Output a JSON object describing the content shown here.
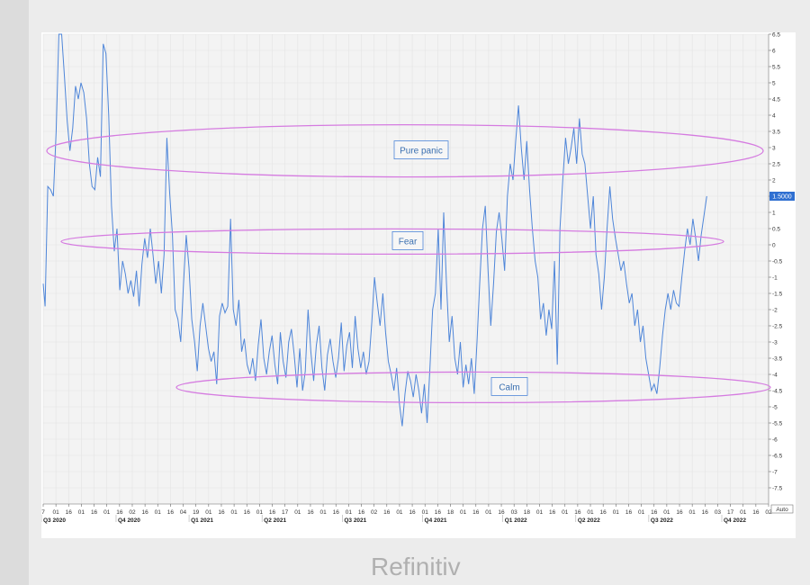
{
  "brand": "Refinitiv",
  "colors": {
    "line": "#4f86d9",
    "ellipse": "#d57be0",
    "label_border": "#4f86d9",
    "last_value_bg": "#2f6fd1",
    "grid": "#e3e3e3"
  },
  "chart_data": {
    "type": "line",
    "title": "",
    "xlabel": "",
    "ylabel": "",
    "ylim": [
      -8,
      6.5
    ],
    "yticks": [
      "6.5",
      "6",
      "5.5",
      "5",
      "4.5",
      "4",
      "3.5",
      "3",
      "2.5",
      "2",
      "1.5",
      "1",
      "0.5",
      "0",
      "-0.5",
      "-1",
      "-1.5",
      "-2",
      "-2.5",
      "-3",
      "-3.5",
      "-4",
      "-4.5",
      "-5",
      "-5.5",
      "-6",
      "-6.5",
      "-7",
      "-7.5"
    ],
    "last_value_label": "1.5000",
    "auto_label": "Auto",
    "grid": true,
    "xtick_days": [
      "7",
      "01",
      "16",
      "01",
      "16",
      "01",
      "16",
      "02",
      "16",
      "01",
      "16",
      "04",
      "19",
      "01",
      "16",
      "01",
      "16",
      "01",
      "16",
      "17",
      "01",
      "16",
      "01",
      "16",
      "01",
      "16",
      "02",
      "16",
      "01",
      "16",
      "01",
      "16",
      "18",
      "01",
      "16",
      "01",
      "16",
      "03",
      "18",
      "01",
      "16",
      "01",
      "16",
      "01",
      "16",
      "01",
      "16",
      "01",
      "16",
      "01",
      "16",
      "01",
      "16",
      "03",
      "17",
      "01",
      "16",
      "02"
    ],
    "quarters": [
      "Q3 2020",
      "Q4 2020",
      "Q1 2021",
      "Q2 2021",
      "Q3 2021",
      "Q4 2021",
      "Q1 2022",
      "Q2 2022",
      "Q3 2022",
      "Q4 2022"
    ],
    "x_range": [
      "2020-09-07",
      "2022-11-02"
    ],
    "series": [
      {
        "points": [
          [
            "2020-09-07",
            -1.2
          ],
          [
            "2020-09-09",
            -1.9
          ],
          [
            "2020-09-12",
            1.8
          ],
          [
            "2020-09-15",
            1.7
          ],
          [
            "2020-09-18",
            1.5
          ],
          [
            "2020-09-21",
            3.5
          ],
          [
            "2020-09-24",
            6.5
          ],
          [
            "2020-09-27",
            6.5
          ],
          [
            "2020-09-30",
            5.2
          ],
          [
            "2020-10-03",
            3.8
          ],
          [
            "2020-10-06",
            2.9
          ],
          [
            "2020-10-09",
            3.6
          ],
          [
            "2020-10-12",
            4.9
          ],
          [
            "2020-10-15",
            4.5
          ],
          [
            "2020-10-18",
            5.0
          ],
          [
            "2020-10-21",
            4.7
          ],
          [
            "2020-10-24",
            3.9
          ],
          [
            "2020-10-27",
            2.5
          ],
          [
            "2020-10-30",
            1.8
          ],
          [
            "2020-11-02",
            1.7
          ],
          [
            "2020-11-05",
            2.7
          ],
          [
            "2020-11-08",
            2.1
          ],
          [
            "2020-11-11",
            6.2
          ],
          [
            "2020-11-14",
            5.9
          ],
          [
            "2020-11-17",
            4.0
          ],
          [
            "2020-11-20",
            1.2
          ],
          [
            "2020-11-23",
            -0.2
          ],
          [
            "2020-11-26",
            0.5
          ],
          [
            "2020-11-29",
            -1.4
          ],
          [
            "2020-12-02",
            -0.5
          ],
          [
            "2020-12-05",
            -0.9
          ],
          [
            "2020-12-08",
            -1.5
          ],
          [
            "2020-12-11",
            -1.1
          ],
          [
            "2020-12-14",
            -1.6
          ],
          [
            "2020-12-17",
            -0.8
          ],
          [
            "2020-12-20",
            -1.9
          ],
          [
            "2020-12-23",
            -0.6
          ],
          [
            "2020-12-26",
            0.2
          ],
          [
            "2020-12-29",
            -0.4
          ],
          [
            "2021-01-01",
            0.5
          ],
          [
            "2021-01-04",
            -0.3
          ],
          [
            "2021-01-07",
            -1.2
          ],
          [
            "2021-01-10",
            -0.5
          ],
          [
            "2021-01-13",
            -1.5
          ],
          [
            "2021-01-16",
            -0.3
          ],
          [
            "2021-01-19",
            3.3
          ],
          [
            "2021-01-22",
            1.6
          ],
          [
            "2021-01-25",
            0.3
          ],
          [
            "2021-01-28",
            -2.0
          ],
          [
            "2021-01-31",
            -2.3
          ],
          [
            "2021-02-03",
            -3.0
          ],
          [
            "2021-02-06",
            -1.2
          ],
          [
            "2021-02-09",
            0.3
          ],
          [
            "2021-02-12",
            -0.7
          ],
          [
            "2021-02-15",
            -2.3
          ],
          [
            "2021-02-18",
            -3.0
          ],
          [
            "2021-02-21",
            -3.9
          ],
          [
            "2021-02-24",
            -2.5
          ],
          [
            "2021-02-27",
            -1.8
          ],
          [
            "2021-03-02",
            -2.5
          ],
          [
            "2021-03-05",
            -3.2
          ],
          [
            "2021-03-08",
            -3.6
          ],
          [
            "2021-03-11",
            -3.3
          ],
          [
            "2021-03-14",
            -4.3
          ],
          [
            "2021-03-17",
            -2.2
          ],
          [
            "2021-03-20",
            -1.8
          ],
          [
            "2021-03-23",
            -2.1
          ],
          [
            "2021-03-26",
            -1.9
          ],
          [
            "2021-03-29",
            0.8
          ],
          [
            "2021-04-01",
            -2.0
          ],
          [
            "2021-04-04",
            -2.5
          ],
          [
            "2021-04-07",
            -1.7
          ],
          [
            "2021-04-10",
            -3.3
          ],
          [
            "2021-04-13",
            -2.9
          ],
          [
            "2021-04-16",
            -3.7
          ],
          [
            "2021-04-19",
            -4.0
          ],
          [
            "2021-04-22",
            -3.5
          ],
          [
            "2021-04-25",
            -4.2
          ],
          [
            "2021-04-28",
            -3.1
          ],
          [
            "2021-05-01",
            -2.3
          ],
          [
            "2021-05-04",
            -3.5
          ],
          [
            "2021-05-07",
            -4.0
          ],
          [
            "2021-05-10",
            -3.3
          ],
          [
            "2021-05-13",
            -2.8
          ],
          [
            "2021-05-16",
            -3.7
          ],
          [
            "2021-05-19",
            -4.3
          ],
          [
            "2021-05-22",
            -2.7
          ],
          [
            "2021-05-25",
            -3.6
          ],
          [
            "2021-05-28",
            -4.1
          ],
          [
            "2021-05-31",
            -3.0
          ],
          [
            "2021-06-03",
            -2.6
          ],
          [
            "2021-06-06",
            -3.4
          ],
          [
            "2021-06-09",
            -4.4
          ],
          [
            "2021-06-12",
            -3.2
          ],
          [
            "2021-06-15",
            -4.5
          ],
          [
            "2021-06-18",
            -3.9
          ],
          [
            "2021-06-21",
            -2.0
          ],
          [
            "2021-06-24",
            -3.3
          ],
          [
            "2021-06-27",
            -4.2
          ],
          [
            "2021-06-30",
            -3.1
          ],
          [
            "2021-07-03",
            -2.5
          ],
          [
            "2021-07-06",
            -3.8
          ],
          [
            "2021-07-09",
            -4.5
          ],
          [
            "2021-07-12",
            -3.4
          ],
          [
            "2021-07-15",
            -2.9
          ],
          [
            "2021-07-18",
            -3.6
          ],
          [
            "2021-07-21",
            -4.1
          ],
          [
            "2021-07-24",
            -3.5
          ],
          [
            "2021-07-27",
            -2.4
          ],
          [
            "2021-07-30",
            -3.9
          ],
          [
            "2021-08-02",
            -3.1
          ],
          [
            "2021-08-05",
            -2.7
          ],
          [
            "2021-08-08",
            -3.8
          ],
          [
            "2021-08-11",
            -2.2
          ],
          [
            "2021-08-14",
            -3.2
          ],
          [
            "2021-08-17",
            -3.8
          ],
          [
            "2021-08-20",
            -3.3
          ],
          [
            "2021-08-23",
            -4.0
          ],
          [
            "2021-08-26",
            -3.6
          ],
          [
            "2021-08-29",
            -2.4
          ],
          [
            "2021-09-01",
            -1.0
          ],
          [
            "2021-09-04",
            -1.8
          ],
          [
            "2021-09-07",
            -2.5
          ],
          [
            "2021-09-10",
            -1.5
          ],
          [
            "2021-09-13",
            -2.7
          ],
          [
            "2021-09-16",
            -3.6
          ],
          [
            "2021-09-19",
            -4.0
          ],
          [
            "2021-09-22",
            -4.5
          ],
          [
            "2021-09-25",
            -3.8
          ],
          [
            "2021-09-28",
            -4.9
          ],
          [
            "2021-10-01",
            -5.6
          ],
          [
            "2021-10-04",
            -4.6
          ],
          [
            "2021-10-07",
            -3.9
          ],
          [
            "2021-10-10",
            -4.2
          ],
          [
            "2021-10-13",
            -4.7
          ],
          [
            "2021-10-16",
            -4.0
          ],
          [
            "2021-10-19",
            -4.5
          ],
          [
            "2021-10-22",
            -5.2
          ],
          [
            "2021-10-25",
            -4.3
          ],
          [
            "2021-10-28",
            -5.5
          ],
          [
            "2021-10-31",
            -3.8
          ],
          [
            "2021-11-03",
            -2.0
          ],
          [
            "2021-11-06",
            -1.5
          ],
          [
            "2021-11-09",
            0.5
          ],
          [
            "2021-11-12",
            -2.0
          ],
          [
            "2021-11-15",
            1.0
          ],
          [
            "2021-11-18",
            -1.2
          ],
          [
            "2021-11-21",
            -3.0
          ],
          [
            "2021-11-24",
            -2.2
          ],
          [
            "2021-11-27",
            -3.5
          ],
          [
            "2021-11-30",
            -4.0
          ],
          [
            "2021-12-03",
            -3.0
          ],
          [
            "2021-12-06",
            -4.4
          ],
          [
            "2021-12-09",
            -3.7
          ],
          [
            "2021-12-12",
            -4.3
          ],
          [
            "2021-12-15",
            -3.5
          ],
          [
            "2021-12-18",
            -4.6
          ],
          [
            "2021-12-21",
            -3.0
          ],
          [
            "2021-12-24",
            -1.2
          ],
          [
            "2021-12-27",
            0.5
          ],
          [
            "2021-12-30",
            1.2
          ],
          [
            "2022-01-02",
            -0.8
          ],
          [
            "2022-01-05",
            -2.5
          ],
          [
            "2022-01-08",
            -1.2
          ],
          [
            "2022-01-11",
            0.4
          ],
          [
            "2022-01-14",
            1.0
          ],
          [
            "2022-01-17",
            0.2
          ],
          [
            "2022-01-20",
            -0.8
          ],
          [
            "2022-01-23",
            1.5
          ],
          [
            "2022-01-26",
            2.5
          ],
          [
            "2022-01-29",
            2.0
          ],
          [
            "2022-02-01",
            3.2
          ],
          [
            "2022-02-04",
            4.3
          ],
          [
            "2022-02-07",
            3.0
          ],
          [
            "2022-02-10",
            2.0
          ],
          [
            "2022-02-13",
            3.2
          ],
          [
            "2022-02-16",
            1.7
          ],
          [
            "2022-02-19",
            0.5
          ],
          [
            "2022-02-22",
            -0.5
          ],
          [
            "2022-02-25",
            -1.0
          ],
          [
            "2022-02-28",
            -2.3
          ],
          [
            "2022-03-03",
            -1.8
          ],
          [
            "2022-03-06",
            -2.8
          ],
          [
            "2022-03-09",
            -2.0
          ],
          [
            "2022-03-12",
            -2.6
          ],
          [
            "2022-03-15",
            -0.5
          ],
          [
            "2022-03-18",
            -3.7
          ],
          [
            "2022-03-21",
            0.5
          ],
          [
            "2022-03-24",
            2.0
          ],
          [
            "2022-03-27",
            3.3
          ],
          [
            "2022-03-30",
            2.5
          ],
          [
            "2022-04-02",
            3.0
          ],
          [
            "2022-04-05",
            3.6
          ],
          [
            "2022-04-08",
            2.5
          ],
          [
            "2022-04-11",
            3.9
          ],
          [
            "2022-04-14",
            2.8
          ],
          [
            "2022-04-17",
            2.5
          ],
          [
            "2022-04-20",
            1.5
          ],
          [
            "2022-04-23",
            0.5
          ],
          [
            "2022-04-26",
            1.5
          ],
          [
            "2022-04-29",
            -0.3
          ],
          [
            "2022-05-02",
            -0.9
          ],
          [
            "2022-05-05",
            -2.0
          ],
          [
            "2022-05-08",
            -1.0
          ],
          [
            "2022-05-11",
            0.5
          ],
          [
            "2022-05-14",
            1.8
          ],
          [
            "2022-05-17",
            0.8
          ],
          [
            "2022-05-20",
            0.2
          ],
          [
            "2022-05-23",
            -0.3
          ],
          [
            "2022-05-26",
            -0.8
          ],
          [
            "2022-05-29",
            -0.5
          ],
          [
            "2022-06-01",
            -1.2
          ],
          [
            "2022-06-04",
            -1.8
          ],
          [
            "2022-06-07",
            -1.5
          ],
          [
            "2022-06-10",
            -2.5
          ],
          [
            "2022-06-13",
            -2.0
          ],
          [
            "2022-06-16",
            -3.0
          ],
          [
            "2022-06-19",
            -2.5
          ],
          [
            "2022-06-22",
            -3.5
          ],
          [
            "2022-06-25",
            -4.0
          ],
          [
            "2022-06-28",
            -4.5
          ],
          [
            "2022-07-01",
            -4.3
          ],
          [
            "2022-07-04",
            -4.6
          ],
          [
            "2022-07-07",
            -3.8
          ],
          [
            "2022-07-10",
            -2.8
          ],
          [
            "2022-07-13",
            -2.0
          ],
          [
            "2022-07-16",
            -1.5
          ],
          [
            "2022-07-19",
            -2.0
          ],
          [
            "2022-07-22",
            -1.4
          ],
          [
            "2022-07-25",
            -1.8
          ],
          [
            "2022-07-28",
            -1.9
          ],
          [
            "2022-07-31",
            -1.0
          ],
          [
            "2022-08-03",
            -0.2
          ],
          [
            "2022-08-06",
            0.5
          ],
          [
            "2022-08-09",
            0.0
          ],
          [
            "2022-08-12",
            0.8
          ],
          [
            "2022-08-15",
            0.2
          ],
          [
            "2022-08-18",
            -0.5
          ],
          [
            "2022-08-21",
            0.3
          ],
          [
            "2022-08-24",
            0.9
          ],
          [
            "2022-08-27",
            1.5
          ]
        ]
      }
    ],
    "annotations": [
      {
        "text": "Pure panic",
        "shape": "ellipse",
        "y_center": 2.9
      },
      {
        "text": "Fear",
        "shape": "ellipse",
        "y_center": 0.1
      },
      {
        "text": "Calm",
        "shape": "ellipse",
        "y_center": -4.4
      }
    ]
  }
}
